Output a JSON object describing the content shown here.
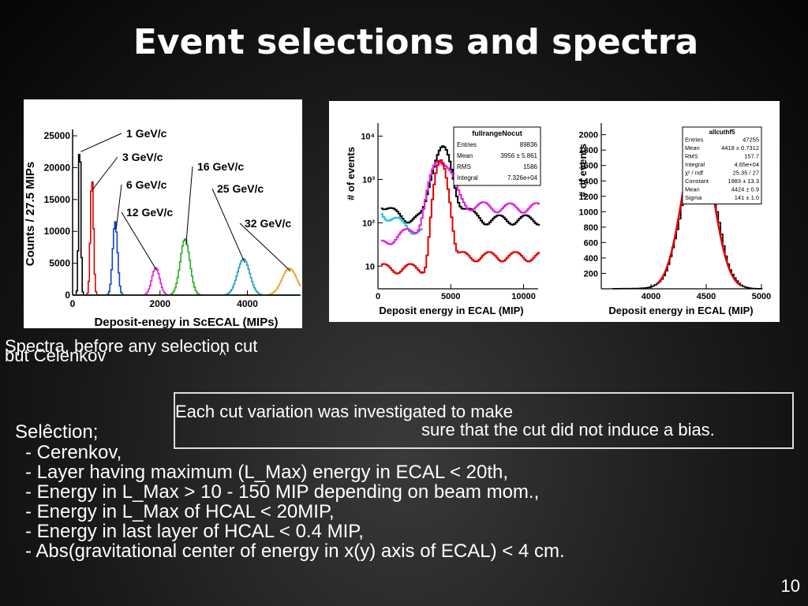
{
  "slide": {
    "title": "Event selections and spectra",
    "caption_line1": "Spectra, before any selection cut",
    "caption_line2": "but Celenkov",
    "caption_hat": "^",
    "note_line1": "Each cut variation was investigated to make",
    "note_line2": "sure that the cut did not induce a bias.",
    "selection_heading": "Selêction;",
    "selection_items": [
      "- Cerenkov,",
      "- Layer having maximum (L_Max) energy in ECAL < 20th,",
      "- Energy in L_Max > 10 - 150 MIP depending on beam mom.,",
      "- Energy in L_Max of HCAL < 20MIP,",
      "- Energy in last layer of HCAL < 0.4 MIP,",
      "- Abs(gravitational center of energy in x(y) axis of ECAL) < 4 cm."
    ],
    "page_number": "10"
  },
  "chart_data": [
    {
      "type": "line",
      "xlabel": "Deposit-enegy in ScECAL (MIPs)",
      "ylabel": "Counts / 27.5 MIPs",
      "xlim": [
        0,
        5200
      ],
      "ylim": [
        0,
        26000
      ],
      "x_ticks": [
        "0",
        "2000",
        "4000"
      ],
      "y_ticks": [
        "0",
        "5000",
        "10000",
        "15000",
        "20000",
        "25000"
      ],
      "series": [
        {
          "name": "1 GeV/c",
          "color": "#000000",
          "peak_x": 150,
          "peak_y": 25000,
          "sigma": 25
        },
        {
          "name": "3 GeV/c",
          "color": "#e00000",
          "peak_x": 430,
          "peak_y": 18500,
          "sigma": 35
        },
        {
          "name": "6 GeV/c",
          "color": "#1040d0",
          "peak_x": 960,
          "peak_y": 11500,
          "sigma": 55
        },
        {
          "name": "12 GeV/c",
          "color": "#e020e0",
          "peak_x": 1890,
          "peak_y": 4300,
          "sigma": 90
        },
        {
          "name": "16 GeV/c",
          "color": "#20b020",
          "peak_x": 2560,
          "peak_y": 8800,
          "sigma": 110
        },
        {
          "name": "25 GeV/c",
          "color": "#20a0c0",
          "peak_x": 3900,
          "peak_y": 5700,
          "sigma": 140
        },
        {
          "name": "32 GeV/c",
          "color": "#f0a030",
          "peak_x": 4950,
          "peak_y": 4200,
          "sigma": 170
        }
      ]
    },
    {
      "type": "line",
      "xlabel": "Deposit energy in ECAL (MIP)",
      "ylabel": "# of events",
      "log_y": true,
      "xlim": [
        0,
        11000
      ],
      "ylim": [
        3,
        20000
      ],
      "x_ticks": [
        "0",
        "5000",
        "10000"
      ],
      "y_ticks": [
        "10",
        "10²",
        "10³",
        "10⁴"
      ],
      "stats": {
        "name": "fullrangeNocut",
        "rows": [
          [
            "Entries",
            "89836"
          ],
          [
            "Mean",
            "3956 ± 5.861"
          ],
          [
            "RMS",
            "1586"
          ],
          [
            "Integral",
            "7.326e+04"
          ]
        ]
      }
    },
    {
      "type": "line",
      "xlabel": "Deposit energy in ECAL (MIP)",
      "ylabel": "# of events",
      "xlim": [
        3550,
        5000
      ],
      "ylim": [
        0,
        2150
      ],
      "x_ticks": [
        "4000",
        "4500",
        "5000"
      ],
      "y_ticks": [
        "200",
        "400",
        "600",
        "800",
        "1000",
        "1200",
        "1400",
        "1600",
        "1800",
        "2000"
      ],
      "stats": {
        "name": "allcuthf5",
        "rows": [
          [
            "Entries",
            "47255"
          ],
          [
            "Mean",
            "4418 ± 0.7312"
          ],
          [
            "RMS",
            "157.7"
          ],
          [
            "Integral",
            "4.65e+04"
          ],
          [
            "χ² / ndf",
            "25.35 / 27"
          ],
          [
            "Constant",
            "1983 ± 13.3"
          ],
          [
            "Mean",
            "4424 ± 0.9"
          ],
          [
            "Sigma",
            "141 ± 1.0"
          ]
        ]
      },
      "fit": {
        "constant": 1983,
        "mean": 4424,
        "sigma": 141
      }
    }
  ]
}
